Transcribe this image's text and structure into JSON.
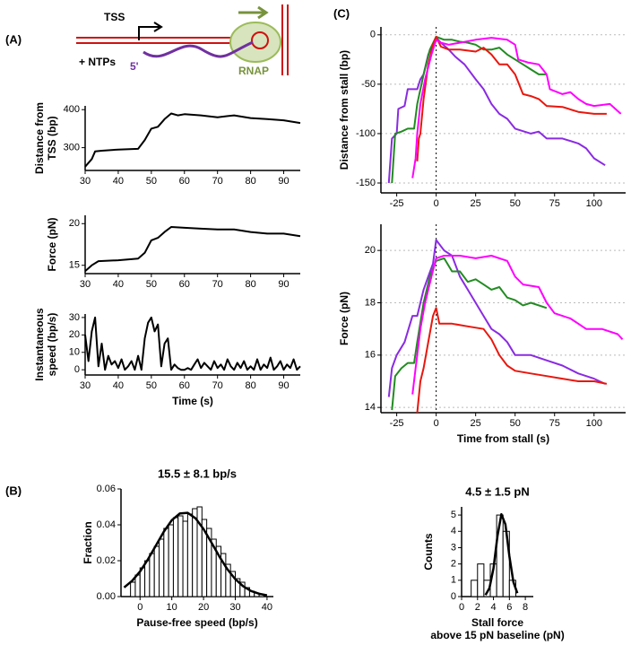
{
  "panel_labels": [
    "(A)",
    "(B)",
    "(C)"
  ],
  "diagram": {
    "tss": "TSS",
    "ntps": "+ NTPs",
    "five_prime": "5'",
    "rnap": "RNAP"
  },
  "chart_data": [
    {
      "type": "line",
      "ylabel": [
        "Distance from",
        "TSS (bp)"
      ],
      "xlim": [
        30,
        95
      ],
      "xticks": [
        30,
        40,
        50,
        60,
        70,
        80,
        90
      ],
      "ylim": [
        240,
        410
      ],
      "yticks": [
        300,
        400
      ],
      "grid": false,
      "series": [
        {
          "color": "#000000",
          "x": [
            30,
            32,
            33,
            35,
            40,
            46,
            48,
            50,
            52,
            54,
            56,
            58,
            60,
            65,
            70,
            75,
            80,
            85,
            90,
            95
          ],
          "values": [
            250,
            270,
            290,
            292,
            295,
            297,
            320,
            350,
            355,
            375,
            390,
            385,
            388,
            385,
            380,
            385,
            378,
            375,
            372,
            365
          ]
        }
      ]
    },
    {
      "type": "line",
      "ylabel": [
        "Force (pN)"
      ],
      "xlim": [
        30,
        95
      ],
      "xticks": [
        30,
        40,
        50,
        60,
        70,
        80,
        90
      ],
      "ylim": [
        14,
        21
      ],
      "yticks": [
        15,
        20
      ],
      "grid": false,
      "series": [
        {
          "color": "#000000",
          "x": [
            30,
            32,
            34,
            40,
            46,
            48,
            50,
            52,
            54,
            56,
            60,
            65,
            70,
            75,
            80,
            85,
            90,
            95
          ],
          "values": [
            14.3,
            15,
            15.5,
            15.6,
            15.8,
            16.5,
            18,
            18.3,
            19,
            19.6,
            19.5,
            19.4,
            19.3,
            19.3,
            19,
            18.8,
            18.8,
            18.5
          ]
        }
      ]
    },
    {
      "type": "line",
      "ylabel": [
        "Instantaneous",
        "speed (bp/s)"
      ],
      "xlabel": [
        "Time (s)"
      ],
      "xlim": [
        30,
        95
      ],
      "xticks": [
        30,
        40,
        50,
        60,
        70,
        80,
        90
      ],
      "ylim": [
        -3,
        32
      ],
      "yticks": [
        0,
        10,
        20,
        30
      ],
      "grid": false,
      "series": [
        {
          "color": "#000000",
          "x": [
            30,
            31,
            32,
            33,
            34,
            35,
            36,
            37,
            38,
            39,
            40,
            41,
            42,
            43,
            44,
            45,
            46,
            47,
            48,
            49,
            50,
            51,
            52,
            53,
            54,
            55,
            56,
            57,
            58,
            59,
            60,
            61,
            62,
            63,
            64,
            65,
            66,
            67,
            68,
            69,
            70,
            71,
            72,
            73,
            74,
            75,
            76,
            77,
            78,
            79,
            80,
            81,
            82,
            83,
            84,
            85,
            86,
            87,
            88,
            89,
            90,
            91,
            92,
            93,
            94,
            95
          ],
          "values": [
            20,
            5,
            22,
            30,
            2,
            15,
            0,
            8,
            3,
            5,
            1,
            6,
            0,
            2,
            5,
            0,
            8,
            0,
            18,
            27,
            30,
            22,
            26,
            2,
            15,
            18,
            0,
            3,
            1,
            0,
            0,
            1,
            0,
            3,
            6,
            1,
            4,
            2,
            0,
            5,
            1,
            3,
            0,
            6,
            2,
            0,
            4,
            1,
            5,
            0,
            2,
            0,
            6,
            0,
            3,
            1,
            7,
            0,
            2,
            5,
            0,
            3,
            1,
            6,
            0,
            2
          ]
        }
      ]
    },
    {
      "type": "histogram",
      "title": "15.5 ± 8.1 bp/s",
      "ylabel": [
        "Fraction"
      ],
      "xlabel": [
        "Pause-free speed (bp/s)"
      ],
      "xlim": [
        -6,
        42
      ],
      "xticks": [
        0,
        10,
        20,
        30,
        40
      ],
      "ylim": [
        0,
        0.06
      ],
      "yticks": [
        {
          "value": 0,
          "label": "0.00"
        },
        0.02,
        0.04,
        0.06
      ],
      "bins": [
        -3,
        -1.5,
        0,
        1.5,
        3,
        4.5,
        6,
        7.5,
        9,
        10.5,
        12,
        13.5,
        15,
        16.5,
        18,
        19.5,
        21,
        22.5,
        24,
        25.5,
        27,
        28.5,
        30,
        31.5,
        33,
        34.5,
        36,
        37.5,
        39
      ],
      "values": [
        0.008,
        0.012,
        0.016,
        0.02,
        0.024,
        0.028,
        0.032,
        0.038,
        0.04,
        0.044,
        0.045,
        0.042,
        0.046,
        0.049,
        0.05,
        0.043,
        0.038,
        0.032,
        0.028,
        0.024,
        0.018,
        0.014,
        0.01,
        0.008,
        0.005,
        0.003,
        0.002,
        0.001
      ],
      "fit": {
        "color": "#000000",
        "x": [
          -5,
          -2.5,
          0,
          2.5,
          5,
          7.5,
          10,
          12.5,
          15,
          17.5,
          20,
          22.5,
          25,
          27.5,
          30,
          32.5,
          35,
          37.5,
          40
        ],
        "values": [
          0.0051,
          0.0088,
          0.014,
          0.0208,
          0.0285,
          0.0362,
          0.0426,
          0.0463,
          0.0467,
          0.0436,
          0.0376,
          0.0301,
          0.0223,
          0.0153,
          0.0097,
          0.0057,
          0.0031,
          0.0016,
          0.0007
        ]
      }
    },
    {
      "type": "histogram",
      "title": "4.5 ± 1.5 pN",
      "ylabel": [
        "Counts"
      ],
      "xlabel": [
        "Stall force",
        "above 15 pN baseline (pN)"
      ],
      "xlim": [
        0,
        9
      ],
      "xticks": [
        0,
        2,
        4,
        6,
        8
      ],
      "ylim": [
        0,
        5.5
      ],
      "yticks": [
        0,
        1,
        2,
        3,
        4,
        5
      ],
      "bins": [
        1.2,
        2,
        2.8,
        3.6,
        4.4,
        5.2,
        6,
        6.8
      ],
      "values": [
        1,
        2,
        1,
        2,
        5,
        4,
        1
      ],
      "fit": {
        "color": "#000000",
        "x": [
          3,
          3.5,
          4,
          4.5,
          5,
          5.5,
          6,
          6.5,
          7
        ],
        "values": [
          0.1,
          0.52,
          1.74,
          3.7,
          5.05,
          4.42,
          2.48,
          0.89,
          0.21
        ]
      }
    },
    {
      "type": "line",
      "ylabel": [
        "Distance from stall (bp)"
      ],
      "xlim": [
        -35,
        120
      ],
      "xticks": [
        -25,
        0,
        25,
        50,
        75,
        100
      ],
      "ylim": [
        -160,
        8
      ],
      "yticks": [
        0,
        -50,
        -100,
        -150
      ],
      "grid": true,
      "vline": 0,
      "series": [
        {
          "color": "#8a2be2",
          "x": [
            -30,
            -28,
            -25,
            -24,
            -20,
            -18,
            -12,
            -10,
            -8,
            -5,
            -2,
            0,
            3,
            8,
            12,
            18,
            25,
            30,
            35,
            40,
            45,
            50,
            60,
            65,
            70,
            80,
            90,
            95,
            100,
            107
          ],
          "values": [
            -150,
            -105,
            -100,
            -75,
            -72,
            -55,
            -55,
            -45,
            -40,
            -20,
            -10,
            -3,
            -8,
            -15,
            -22,
            -30,
            -45,
            -55,
            -70,
            -80,
            -85,
            -95,
            -100,
            -98,
            -105,
            -105,
            -110,
            -115,
            -125,
            -132
          ]
        },
        {
          "color": "#228b22",
          "x": [
            -28,
            -26,
            -22,
            -18,
            -14,
            -12,
            -8,
            -4,
            0,
            5,
            10,
            15,
            20,
            25,
            30,
            35,
            40,
            45,
            50,
            55,
            60,
            65,
            70
          ],
          "values": [
            -150,
            -100,
            -98,
            -95,
            -95,
            -70,
            -40,
            -15,
            -2,
            -5,
            -5,
            -7,
            -8,
            -10,
            -15,
            -15,
            -13,
            -20,
            -25,
            -30,
            -35,
            -40,
            -40
          ]
        },
        {
          "color": "#e8170e",
          "x": [
            -12,
            -11,
            -10,
            -8,
            -5,
            -2,
            0,
            3,
            8,
            15,
            25,
            30,
            35,
            40,
            45,
            50,
            55,
            60,
            65,
            70,
            80,
            90,
            100,
            108
          ],
          "values": [
            -128,
            -105,
            -100,
            -65,
            -30,
            -10,
            -2,
            -12,
            -15,
            -15,
            -17,
            -13,
            -20,
            -30,
            -30,
            -40,
            -60,
            -62,
            -65,
            -72,
            -73,
            -78,
            -80,
            -80
          ]
        },
        {
          "color": "#ff00ff",
          "x": [
            -15,
            -13,
            -12,
            -10,
            -7,
            -3,
            0,
            3,
            8,
            15,
            25,
            35,
            45,
            50,
            52,
            58,
            65,
            70,
            72,
            80,
            85,
            90,
            95,
            100,
            110,
            117
          ],
          "values": [
            -145,
            -125,
            -100,
            -70,
            -45,
            -20,
            -5,
            -8,
            -10,
            -8,
            -5,
            -3,
            -5,
            -10,
            -25,
            -28,
            -30,
            -40,
            -55,
            -60,
            -58,
            -65,
            -70,
            -72,
            -70,
            -80
          ]
        }
      ]
    },
    {
      "type": "line",
      "ylabel": [
        "Force (pN)"
      ],
      "xlabel": [
        "Time from stall (s)"
      ],
      "xlim": [
        -35,
        120
      ],
      "xticks": [
        -25,
        0,
        25,
        50,
        75,
        100
      ],
      "ylim": [
        13.8,
        21
      ],
      "yticks": [
        14,
        16,
        18,
        20
      ],
      "grid": true,
      "vline": 0,
      "series": [
        {
          "color": "#8a2be2",
          "x": [
            -30,
            -28,
            -25,
            -20,
            -15,
            -12,
            -8,
            -5,
            -2,
            0,
            5,
            10,
            15,
            20,
            25,
            30,
            35,
            40,
            45,
            50,
            60,
            70,
            80,
            90,
            100,
            107
          ],
          "values": [
            14.4,
            15.5,
            16,
            16.5,
            17.5,
            17.5,
            18.5,
            19,
            19.5,
            20.4,
            20,
            19.8,
            19,
            18.5,
            18,
            17.5,
            17,
            16.8,
            16.5,
            16,
            16,
            15.8,
            15.6,
            15.3,
            15.1,
            14.9
          ]
        },
        {
          "color": "#228b22",
          "x": [
            -28,
            -26,
            -22,
            -18,
            -14,
            -12,
            -8,
            -4,
            0,
            5,
            10,
            15,
            20,
            25,
            30,
            35,
            40,
            45,
            50,
            55,
            60,
            70
          ],
          "values": [
            13.9,
            15.2,
            15.5,
            15.7,
            15.7,
            16.5,
            18,
            19,
            19.6,
            19.7,
            19.2,
            19.2,
            18.8,
            18.9,
            18.7,
            18.5,
            18.6,
            18.2,
            18.1,
            17.9,
            18,
            17.8
          ]
        },
        {
          "color": "#e8170e",
          "x": [
            -12,
            -10,
            -8,
            -5,
            -2,
            0,
            2,
            10,
            20,
            30,
            35,
            40,
            45,
            50,
            60,
            70,
            80,
            90,
            100,
            108
          ],
          "values": [
            13.8,
            15,
            15.5,
            16.5,
            17.5,
            17.8,
            17.2,
            17.2,
            17.1,
            17,
            16.6,
            16,
            15.6,
            15.4,
            15.3,
            15.2,
            15.1,
            15,
            15,
            14.9
          ]
        },
        {
          "color": "#ff00ff",
          "x": [
            -15,
            -13,
            -10,
            -7,
            -3,
            0,
            5,
            15,
            25,
            35,
            45,
            50,
            55,
            65,
            70,
            75,
            85,
            95,
            105,
            115,
            118
          ],
          "values": [
            14.5,
            15.5,
            17,
            18,
            19,
            19.7,
            19.8,
            19.8,
            19.7,
            19.8,
            19.6,
            19,
            18.7,
            18.6,
            18,
            17.6,
            17.4,
            17,
            17,
            16.8,
            16.6
          ]
        }
      ]
    }
  ]
}
